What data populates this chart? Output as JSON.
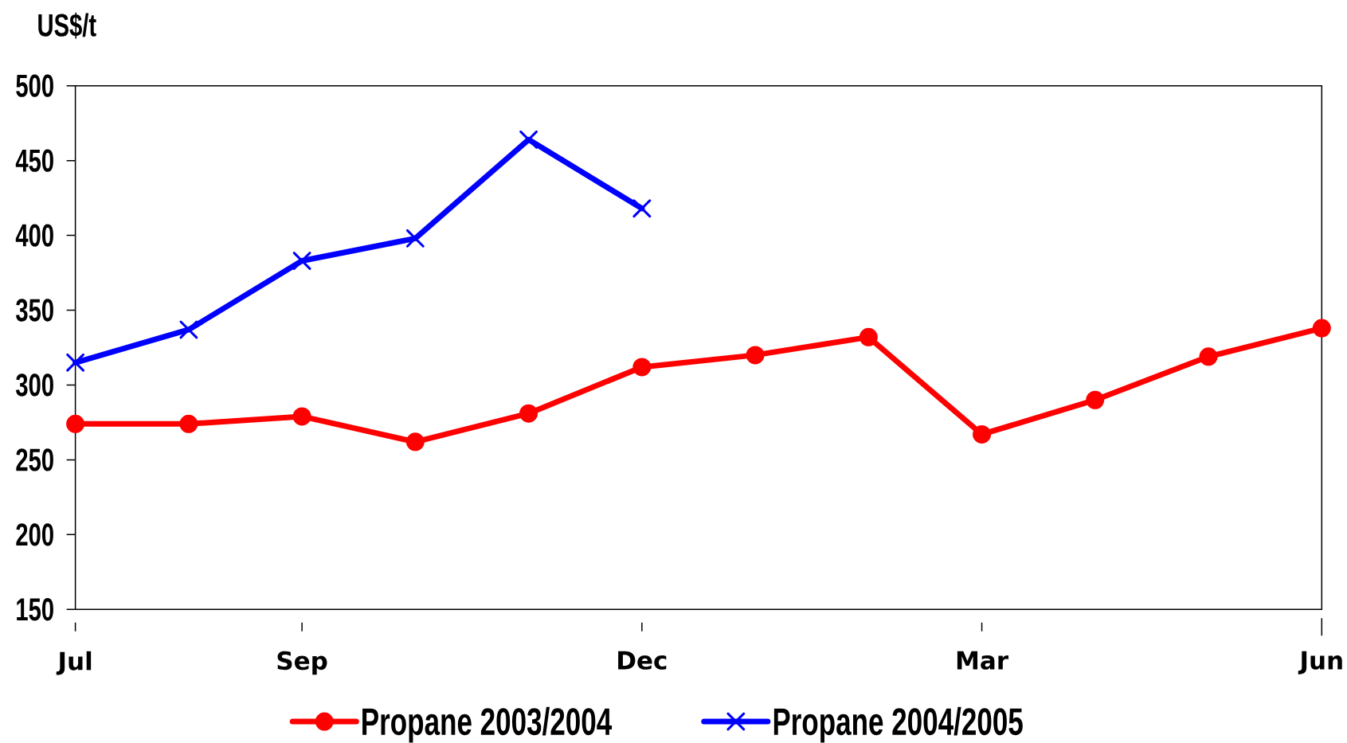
{
  "chart_data": {
    "type": "line",
    "ylabel": "US$/t",
    "categories": [
      "Jul",
      null,
      "Sep",
      null,
      null,
      "Dec",
      null,
      null,
      "Mar",
      null,
      null,
      "Jun"
    ],
    "ylim": [
      150,
      500
    ],
    "yticks": [
      150,
      200,
      250,
      300,
      350,
      400,
      450,
      500
    ],
    "legend": "bottom",
    "series": [
      {
        "name": "Propane 2003/2004",
        "color": "#ff0000",
        "marker": "circle",
        "values": [
          274,
          274,
          279,
          262,
          281,
          312,
          320,
          332,
          267,
          290,
          319,
          338
        ]
      },
      {
        "name": "Propane 2004/2005",
        "color": "#0000ff",
        "marker": "cross",
        "values": [
          315,
          337,
          383,
          398,
          464,
          418,
          null,
          null,
          null,
          null,
          null,
          null
        ]
      }
    ]
  }
}
